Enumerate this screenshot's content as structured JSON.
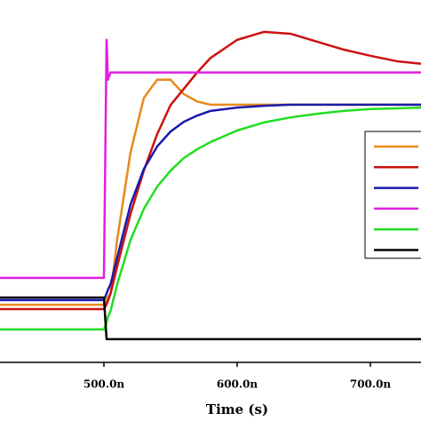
{
  "chart_data": {
    "type": "line",
    "xlabel": "Time (s)",
    "x": [
      422,
      499,
      500,
      502,
      503,
      505,
      510,
      520,
      530,
      540,
      550,
      560,
      570,
      580,
      600,
      620,
      640,
      660,
      680,
      700,
      720,
      738
    ],
    "series": [
      {
        "color": "#e8891e",
        "values": [
          0.159,
          0.159,
          0.159,
          0.17,
          0.18,
          0.19,
          0.34,
          0.58,
          0.73,
          0.78,
          0.78,
          0.74,
          0.72,
          0.711,
          0.711,
          0.711,
          0.711,
          0.711,
          0.711,
          0.711,
          0.711,
          0.711
        ]
      },
      {
        "color": "#cc1111",
        "values": [
          0.147,
          0.147,
          0.147,
          0.16,
          0.17,
          0.19,
          0.265,
          0.41,
          0.53,
          0.63,
          0.71,
          0.755,
          0.8,
          0.84,
          0.89,
          0.912,
          0.907,
          0.885,
          0.863,
          0.846,
          0.831,
          0.824
        ]
      },
      {
        "color": "#1a1aaa",
        "values": [
          0.172,
          0.172,
          0.172,
          0.19,
          0.2,
          0.216,
          0.29,
          0.436,
          0.534,
          0.596,
          0.637,
          0.664,
          0.681,
          0.694,
          0.703,
          0.708,
          0.711,
          0.711,
          0.711,
          0.711,
          0.711,
          0.711
        ]
      },
      {
        "color": "#e020e0",
        "values": [
          0.233,
          0.233,
          0.233,
          0.89,
          0.78,
          0.8,
          0.8,
          0.8,
          0.8,
          0.8,
          0.8,
          0.8,
          0.8,
          0.8,
          0.8,
          0.8,
          0.8,
          0.8,
          0.8,
          0.8,
          0.8,
          0.8
        ]
      },
      {
        "color": "#22dd22",
        "values": [
          0.091,
          0.091,
          0.091,
          0.11,
          0.125,
          0.142,
          0.216,
          0.338,
          0.424,
          0.485,
          0.529,
          0.564,
          0.588,
          0.608,
          0.64,
          0.662,
          0.676,
          0.686,
          0.694,
          0.699,
          0.701,
          0.703
        ]
      },
      {
        "color": "#000000",
        "values": [
          0.179,
          0.179,
          0.179,
          0.064,
          0.064,
          0.064,
          0.064,
          0.064,
          0.064,
          0.064,
          0.064,
          0.064,
          0.064,
          0.064,
          0.064,
          0.064,
          0.064,
          0.064,
          0.064,
          0.064,
          0.064,
          0.064
        ]
      }
    ],
    "xlim": [
      422,
      738
    ],
    "xticks": [
      {
        "value": 500,
        "label": "500.0n"
      },
      {
        "value": 600,
        "label": "600.0n"
      },
      {
        "value": 700,
        "label": "700.0n"
      }
    ],
    "ylim": [
      0,
      1
    ],
    "legend": "right"
  }
}
